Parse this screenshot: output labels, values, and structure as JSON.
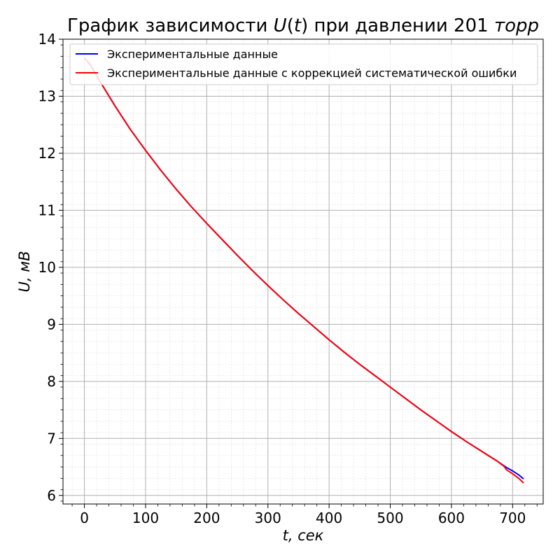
{
  "chart_data": {
    "type": "line",
    "title": "График зависимости U(t) при давлении 201 торр",
    "title_parts": {
      "prefix": "График зависимости ",
      "symbol": "U",
      "arg_open": "(",
      "arg": "t",
      "arg_close": ")",
      "middle": " при давлении 201 ",
      "unit": "торр"
    },
    "xlabel": "t, сек",
    "ylabel": "U, мВ",
    "xlim": [
      -35,
      750
    ],
    "ylim": [
      5.85,
      14.0
    ],
    "x_ticks": [
      0,
      100,
      200,
      300,
      400,
      500,
      600,
      700
    ],
    "y_ticks": [
      6,
      7,
      8,
      9,
      10,
      11,
      12,
      13,
      14
    ],
    "grid": true,
    "minor_grid": true,
    "legend_position": "top-left",
    "series": [
      {
        "name": "Экспериментальные данные",
        "color": "#0000ff",
        "x": [
          0,
          10,
          25,
          50,
          75,
          100,
          125,
          150,
          175,
          200,
          225,
          250,
          275,
          300,
          325,
          350,
          375,
          400,
          425,
          450,
          475,
          500,
          525,
          550,
          575,
          600,
          625,
          650,
          675,
          686,
          690,
          700,
          710,
          718
        ],
        "y": [
          13.67,
          13.55,
          13.27,
          12.83,
          12.42,
          12.05,
          11.7,
          11.37,
          11.06,
          10.77,
          10.49,
          10.21,
          9.94,
          9.68,
          9.43,
          9.19,
          8.96,
          8.73,
          8.51,
          8.3,
          8.1,
          7.9,
          7.7,
          7.5,
          7.31,
          7.12,
          6.94,
          6.77,
          6.6,
          6.52,
          6.49,
          6.43,
          6.36,
          6.29
        ]
      },
      {
        "name": "Экспериментальные данные с коррекцией систематической ошибки",
        "color": "#ff0000",
        "x": [
          0,
          10,
          25,
          50,
          75,
          100,
          125,
          150,
          175,
          200,
          225,
          250,
          275,
          300,
          325,
          350,
          375,
          400,
          425,
          450,
          475,
          500,
          525,
          550,
          575,
          600,
          625,
          650,
          675,
          686,
          690,
          700,
          710,
          718
        ],
        "y": [
          13.67,
          13.55,
          13.27,
          12.83,
          12.42,
          12.05,
          11.7,
          11.37,
          11.06,
          10.77,
          10.49,
          10.21,
          9.94,
          9.68,
          9.43,
          9.19,
          8.96,
          8.73,
          8.51,
          8.3,
          8.1,
          7.9,
          7.7,
          7.5,
          7.31,
          7.12,
          6.94,
          6.77,
          6.6,
          6.51,
          6.45,
          6.38,
          6.3,
          6.22
        ]
      }
    ]
  }
}
